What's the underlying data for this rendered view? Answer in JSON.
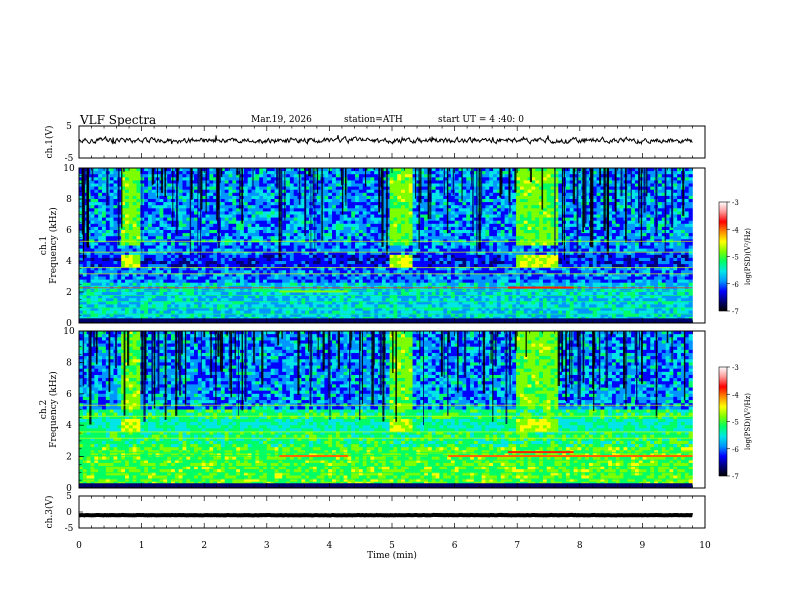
{
  "header": {
    "title": "VLF Spectra",
    "date": "Mar.19, 2026",
    "station": "station=ATH",
    "start_ut": "start UT = 4 :40: 0"
  },
  "chart_data": [
    {
      "type": "line",
      "id": "ch1-waveform",
      "ylabel": "ch.1(V)",
      "ylim": [
        -5,
        5
      ],
      "yticks": [
        "5",
        "-5"
      ],
      "xlim": [
        0,
        10
      ],
      "x_end": 9.8,
      "baseline": 0.5,
      "fluctuation": 0.6
    },
    {
      "type": "heatmap",
      "id": "ch1-spectrogram",
      "ylabel_channel": "ch.1",
      "ylabel": "Frequency (kHz)",
      "ylim": [
        0,
        10
      ],
      "yticks": [
        "0",
        "2",
        "4",
        "6",
        "8",
        "10"
      ],
      "xlim": [
        0,
        10
      ],
      "x_end": 9.8,
      "bright_intervals_min": [
        [
          0.65,
          1.0
        ],
        [
          4.95,
          5.3
        ],
        [
          7.0,
          7.65
        ]
      ],
      "bright_band_khz": [
        3.5,
        4.5
      ],
      "colorbar": {
        "label": "log(PSD)(V²/Hz)",
        "range": [
          -7,
          -3
        ],
        "ticks": [
          "-3",
          "-4",
          "-5",
          "-6",
          "-7"
        ]
      }
    },
    {
      "type": "heatmap",
      "id": "ch2-spectrogram",
      "ylabel_channel": "ch.2",
      "ylabel": "Frequency (kHz)",
      "ylim": [
        0,
        10
      ],
      "yticks": [
        "0",
        "2",
        "4",
        "6",
        "8",
        "10"
      ],
      "xlim": [
        0,
        10
      ],
      "x_end": 9.8,
      "bright_intervals_min": [
        [
          0.65,
          1.0
        ],
        [
          4.95,
          5.3
        ],
        [
          7.0,
          7.65
        ]
      ],
      "bright_band_khz": [
        3.5,
        4.5
      ],
      "colorbar": {
        "label": "log(PSD)(V²/Hz)",
        "range": [
          -7,
          -3
        ],
        "ticks": [
          "-3",
          "-4",
          "-5",
          "-6",
          "-7"
        ]
      }
    },
    {
      "type": "line",
      "id": "ch3-waveform",
      "ylabel": "ch.3(V)",
      "ylim": [
        -5,
        5
      ],
      "yticks": [
        "5",
        "0",
        "-5"
      ],
      "xlim": [
        0,
        10
      ],
      "x_end": 9.8,
      "baseline": -1.0,
      "fluctuation": 0.05
    }
  ],
  "x_axis": {
    "label": "Time (min)",
    "ticks": [
      "0",
      "1",
      "2",
      "3",
      "4",
      "5",
      "6",
      "7",
      "8",
      "9",
      "10"
    ]
  },
  "colormap": [
    "#000000",
    "#00007a",
    "#0000ff",
    "#0096ff",
    "#00e6e6",
    "#00ff64",
    "#7dff00",
    "#ffff00",
    "#ff8c00",
    "#ff0000",
    "#ff9696",
    "#ffffff"
  ]
}
